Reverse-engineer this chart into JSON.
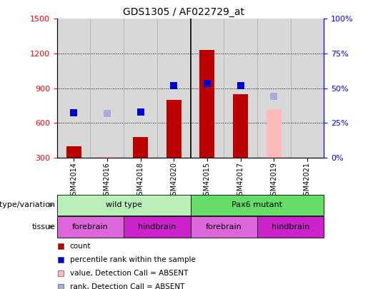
{
  "title": "GDS1305 / AF022729_at",
  "samples": [
    "GSM42014",
    "GSM42016",
    "GSM42018",
    "GSM42020",
    "GSM42015",
    "GSM42017",
    "GSM42019",
    "GSM42021"
  ],
  "count_values": [
    400,
    310,
    480,
    800,
    1230,
    850,
    720,
    290
  ],
  "count_absent": [
    false,
    true,
    false,
    false,
    false,
    false,
    true,
    true
  ],
  "rank_values": [
    690,
    680,
    695,
    920,
    940,
    920,
    830,
    null
  ],
  "rank_absent": [
    false,
    true,
    false,
    false,
    false,
    false,
    true,
    false
  ],
  "ylim_left": [
    300,
    1500
  ],
  "ylim_right": [
    0,
    100
  ],
  "yticks_left": [
    300,
    600,
    900,
    1200,
    1500
  ],
  "yticks_right": [
    0,
    25,
    50,
    75,
    100
  ],
  "bar_color_present": "#bb0000",
  "bar_color_absent": "#ffbbbb",
  "rank_color_present": "#0000cc",
  "rank_color_absent": "#aaaadd",
  "plot_bg_color": "#d8d8d8",
  "background_color": "#ffffff",
  "genotype_groups": [
    {
      "label": "wild type",
      "start": 0,
      "end": 3,
      "color": "#b8f0b8"
    },
    {
      "label": "Pax6 mutant",
      "start": 4,
      "end": 7,
      "color": "#66dd66"
    }
  ],
  "tissue_groups": [
    {
      "label": "forebrain",
      "start": 0,
      "end": 1,
      "color": "#dd66dd"
    },
    {
      "label": "hindbrain",
      "start": 2,
      "end": 3,
      "color": "#cc22cc"
    },
    {
      "label": "forebrain",
      "start": 4,
      "end": 5,
      "color": "#dd66dd"
    },
    {
      "label": "hindbrain",
      "start": 6,
      "end": 7,
      "color": "#cc22cc"
    }
  ],
  "legend_items": [
    {
      "label": "count",
      "color": "#bb0000",
      "type": "square"
    },
    {
      "label": "percentile rank within the sample",
      "color": "#0000cc",
      "type": "square"
    },
    {
      "label": "value, Detection Call = ABSENT",
      "color": "#ffbbbb",
      "type": "square"
    },
    {
      "label": "rank, Detection Call = ABSENT",
      "color": "#aaaadd",
      "type": "square"
    }
  ],
  "rank_marker_size": 50,
  "bar_width": 0.45,
  "divider_at": 3.5
}
